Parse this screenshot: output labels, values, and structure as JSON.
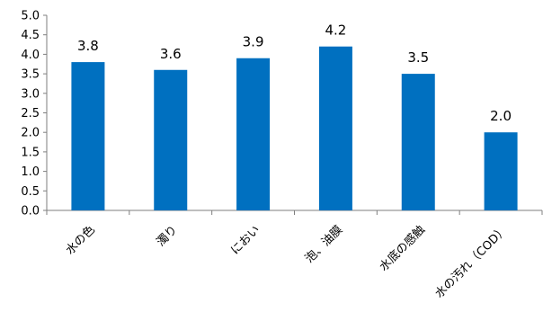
{
  "chart_data": {
    "type": "bar",
    "categories": [
      "水の色",
      "濁り",
      "におい",
      "泡、油膜",
      "水底の感触",
      "水の汚れ（COD）"
    ],
    "values": [
      3.8,
      3.6,
      3.9,
      4.2,
      3.5,
      2.0
    ],
    "data_labels": [
      "3.8",
      "3.6",
      "3.9",
      "4.2",
      "3.5",
      "2.0"
    ],
    "y_ticks": [
      "0.0",
      "0.5",
      "1.0",
      "1.5",
      "2.0",
      "2.5",
      "3.0",
      "3.5",
      "4.0",
      "4.5",
      "5.0"
    ],
    "ylim": [
      0,
      5
    ],
    "grid": false,
    "bar_color": "#0070C0",
    "title": "",
    "xlabel": "",
    "ylabel": ""
  }
}
